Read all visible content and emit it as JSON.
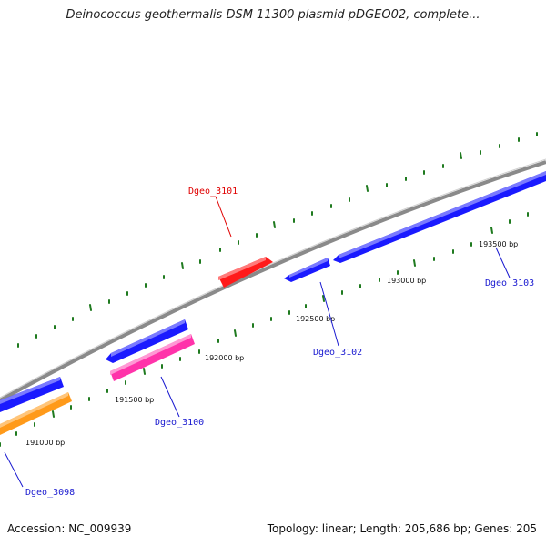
{
  "header": {
    "title": "Deinococcus geothermalis DSM 11300 plasmid pDGEO02, complete..."
  },
  "footer": {
    "accession": "Accession: NC_009939",
    "summary": "Topology: linear; Length: 205,686 bp; Genes: 205"
  },
  "colors": {
    "backbone": "#8a8a8a",
    "ticks": "#1f7a1f",
    "gene_forward": "#1a1aff",
    "gene_red": "#ff1a1a",
    "gene_pink": "#ff33aa",
    "gene_orange": "#ff9a1a",
    "label_blue": "#1a1ad0",
    "label_red": "#e00000"
  },
  "scale_labels": [
    "191000 bp",
    "191500 bp",
    "192000 bp",
    "192500 bp",
    "193000 bp",
    "193500 bp"
  ],
  "gene_labels": [
    {
      "name": "Dgeo_3098",
      "color": "label_blue"
    },
    {
      "name": "Dgeo_3100",
      "color": "label_blue"
    },
    {
      "name": "Dgeo_3101",
      "color": "label_red"
    },
    {
      "name": "Dgeo_3102",
      "color": "label_blue"
    },
    {
      "name": "Dgeo_3103",
      "color": "label_blue"
    }
  ]
}
